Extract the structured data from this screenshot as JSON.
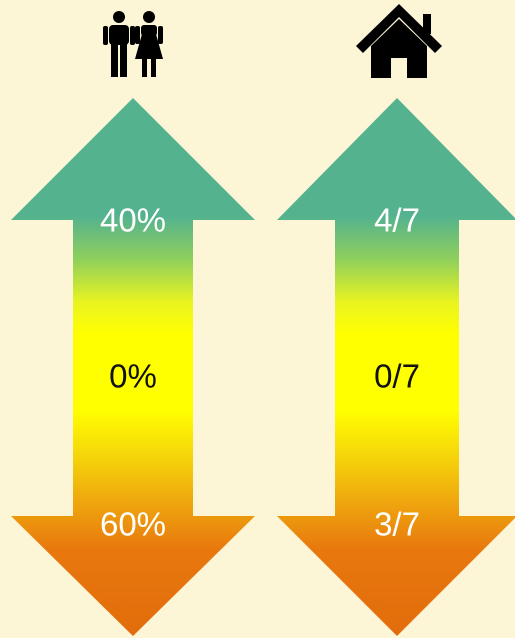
{
  "colors": {
    "background": "#fcf5d6",
    "top": "#54b28e",
    "middle": "#ffff00",
    "bottom": "#e8720e",
    "icon": "#000000"
  },
  "columns": [
    {
      "icon": "people-icon",
      "top_value": "40%",
      "middle_value": "0%",
      "bottom_value": "60%"
    },
    {
      "icon": "house-icon",
      "top_value": "4/7",
      "middle_value": "0/7",
      "bottom_value": "3/7"
    }
  ]
}
